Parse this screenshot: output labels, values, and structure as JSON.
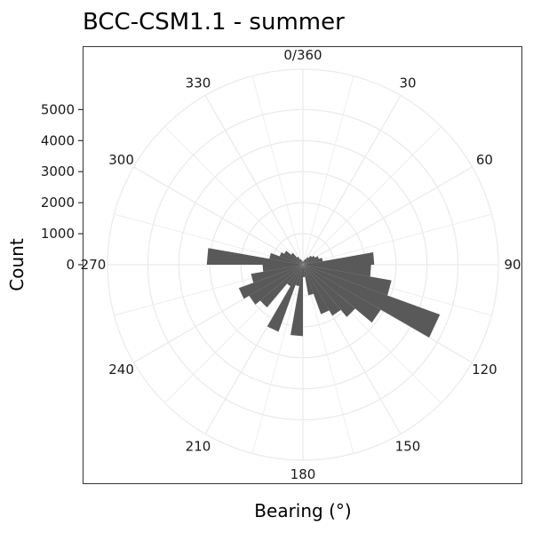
{
  "chart_data": {
    "type": "bar",
    "subtype": "polar-histogram",
    "title": "BCC-CSM1.1 - summer",
    "xlabel": "Bearing (°)",
    "ylabel": "Count",
    "bearing_tick_labels": [
      "0/360",
      "30",
      "60",
      "90",
      "120",
      "150",
      "180",
      "210",
      "240",
      "270",
      "300",
      "330"
    ],
    "bearing_ticks": [
      0,
      30,
      60,
      90,
      120,
      150,
      180,
      210,
      240,
      270,
      300,
      330
    ],
    "count_tick_labels": [
      "0",
      "1000",
      "2000",
      "3000",
      "4000",
      "5000"
    ],
    "count_ticks": [
      0,
      1000,
      2000,
      3000,
      4000,
      5000
    ],
    "count_range": [
      0,
      6300
    ],
    "bin_width_deg": 10,
    "bin_start_deg": [
      0,
      10,
      20,
      30,
      40,
      50,
      60,
      70,
      80,
      90,
      100,
      110,
      120,
      130,
      140,
      150,
      160,
      170,
      180,
      190,
      200,
      210,
      220,
      230,
      240,
      250,
      260,
      270,
      280,
      290,
      300,
      310,
      320,
      330,
      340,
      350
    ],
    "values": [
      100,
      150,
      200,
      280,
      380,
      450,
      550,
      650,
      2300,
      2200,
      2900,
      4700,
      2900,
      2200,
      1900,
      1700,
      1000,
      400,
      2300,
      700,
      2300,
      800,
      1800,
      2000,
      2200,
      1700,
      1300,
      3100,
      1100,
      800,
      700,
      500,
      300,
      200,
      150,
      100
    ],
    "bar_color": "#595959",
    "grid": true,
    "grid_color": "#ebebeb",
    "panel_border_color": "#333333",
    "legend": "none"
  }
}
